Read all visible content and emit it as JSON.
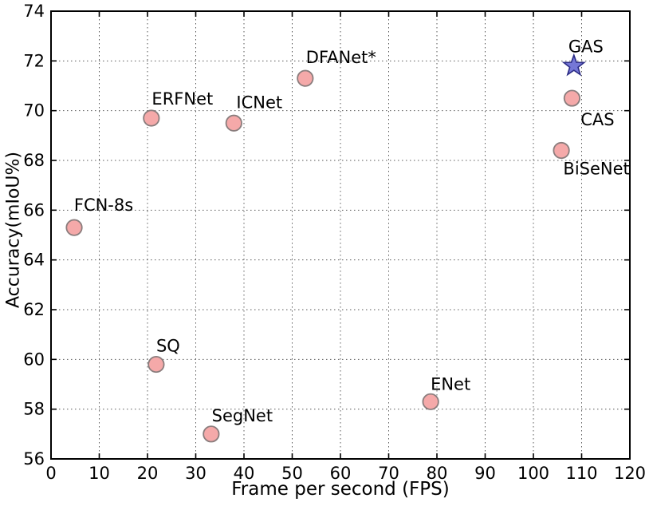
{
  "figure": {
    "background": "#ffffff"
  },
  "chart_data": {
    "type": "scatter",
    "title": "",
    "xlabel": "Frame per second (FPS)",
    "ylabel": "Accuracy(mIoU%)",
    "xlim": [
      0,
      120
    ],
    "ylim": [
      56,
      74
    ],
    "x_ticks": [
      0,
      10,
      20,
      30,
      40,
      50,
      60,
      70,
      80,
      90,
      100,
      110,
      120
    ],
    "y_ticks": [
      56,
      58,
      60,
      62,
      64,
      66,
      68,
      70,
      72,
      74
    ],
    "grid": "dotted",
    "legend": "none",
    "series": [
      {
        "marker": "circle",
        "fill": "#f5a9a9",
        "stroke": "#8a7d7d",
        "points": [
          {
            "label": "FCN-8s",
            "x": 4.8,
            "y": 65.3,
            "label_dx": 37,
            "label_dy": -28
          },
          {
            "label": "ERFNet",
            "x": 20.8,
            "y": 69.7,
            "label_dx": 39,
            "label_dy": -24
          },
          {
            "label": "ICNet",
            "x": 37.9,
            "y": 69.5,
            "label_dx": 32,
            "label_dy": -26
          },
          {
            "label": "DFANet*",
            "x": 52.7,
            "y": 71.3,
            "label_dx": 45,
            "label_dy": -26
          },
          {
            "label": "SQ",
            "x": 21.8,
            "y": 59.8,
            "label_dx": 15,
            "label_dy": -23
          },
          {
            "label": "SegNet",
            "x": 33.2,
            "y": 57.0,
            "label_dx": 39,
            "label_dy": -23
          },
          {
            "label": "ENet",
            "x": 78.7,
            "y": 58.3,
            "label_dx": 25,
            "label_dy": -22
          },
          {
            "label": "BiSeNet",
            "x": 105.8,
            "y": 68.4,
            "label_dx": 44,
            "label_dy": 23
          },
          {
            "label": "CAS",
            "x": 108.0,
            "y": 70.5,
            "label_dx": 32,
            "label_dy": 27
          }
        ]
      },
      {
        "marker": "star",
        "fill": "#7577d6",
        "stroke": "#2b2b85",
        "points": [
          {
            "label": "GAS",
            "x": 108.4,
            "y": 71.8,
            "label_dx": 15,
            "label_dy": -24
          }
        ]
      }
    ]
  },
  "style": {
    "axis_color": "#000000",
    "grid_color": "#5a5a5a",
    "tick_color": "#000000",
    "text_color": "#000000"
  }
}
